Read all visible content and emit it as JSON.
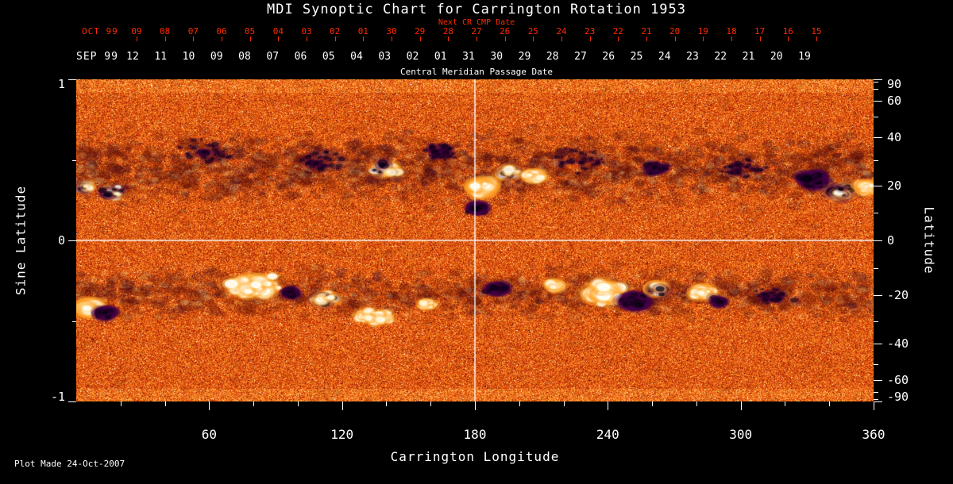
{
  "title": "MDI Synoptic Chart for Carrington Rotation 1953",
  "footer": {
    "plot_made": "Plot Made 24-Oct-2007"
  },
  "colors": {
    "background": "#000000",
    "date_red": "#ff2a00",
    "axis_white": "#ffffff",
    "quiet_sun_orange": "#d4420c",
    "positive_polarity_white": "#fffdf4",
    "negative_polarity_black": "#070210"
  },
  "axes": {
    "top": {
      "next_cr_label": "Next CR CMP Date",
      "next_cr_month": "OCT 99",
      "next_cr_days": [
        "09",
        "08",
        "07",
        "06",
        "05",
        "04",
        "03",
        "02",
        "01",
        "30",
        "29",
        "28",
        "27",
        "26",
        "25",
        "24",
        "23",
        "22",
        "21",
        "20",
        "19",
        "18",
        "17",
        "16",
        "15"
      ],
      "cmp_month": "SEP 99",
      "cmp_days": [
        "12",
        "11",
        "10",
        "09",
        "08",
        "07",
        "06",
        "05",
        "04",
        "03",
        "02",
        "01",
        "31",
        "30",
        "29",
        "28",
        "27",
        "26",
        "25",
        "24",
        "23",
        "22",
        "21",
        "20",
        "19"
      ],
      "cmp_label": "Central Meridian Passage Date"
    },
    "bottom": {
      "label": "Carrington Longitude",
      "ticks": [
        60,
        120,
        180,
        240,
        300,
        360
      ]
    },
    "left": {
      "label": "Sine Latitude",
      "ticks": [
        1,
        0,
        -1
      ]
    },
    "right": {
      "label": "Latitude",
      "ticks": [
        90,
        60,
        40,
        20,
        0,
        -20,
        -40,
        -60,
        -90
      ]
    }
  },
  "chart_data": {
    "type": "heatmap",
    "title": "MDI Synoptic Chart for Carrington Rotation 1953",
    "xlabel": "Carrington Longitude",
    "ylabel_left": "Sine Latitude",
    "ylabel_right": "Latitude",
    "x_range": [
      0,
      360
    ],
    "y_range_sine_latitude": [
      -1,
      1
    ],
    "latitude_ticks_right": [
      90,
      60,
      40,
      20,
      0,
      -20,
      -40,
      -60,
      -90
    ],
    "colormap": "red-temperature solar magnetogram: quiet sun = orange-red granular noise, positive flux = white, negative flux = black",
    "grid": {
      "vertical_lon_line": 180,
      "horizontal_sin_lat_line": 0
    },
    "active_regions": [
      {
        "lon": 17,
        "sin_lat": 0.3,
        "lon_extent_deg": 10,
        "polarity": "mixed",
        "pos_fraction": 0.35,
        "strength": 0.5
      },
      {
        "lon": 4,
        "sin_lat": 0.33,
        "lon_extent_deg": 6,
        "polarity": "mixed",
        "pos_fraction": 0.5,
        "strength": 0.35
      },
      {
        "lon": 140,
        "sin_lat": 0.44,
        "lon_extent_deg": 14,
        "polarity": "mixed",
        "pos_fraction": 0.7,
        "strength": 0.55
      },
      {
        "lon": 183,
        "sin_lat": 0.33,
        "lon_extent_deg": 10,
        "polarity": "positive",
        "strength": 0.9
      },
      {
        "lon": 181,
        "sin_lat": 0.2,
        "lon_extent_deg": 8,
        "polarity": "negative",
        "strength": 0.6
      },
      {
        "lon": 195,
        "sin_lat": 0.42,
        "lon_extent_deg": 9,
        "polarity": "mixed",
        "pos_fraction": 0.6,
        "strength": 0.6
      },
      {
        "lon": 207,
        "sin_lat": 0.4,
        "lon_extent_deg": 10,
        "polarity": "positive",
        "strength": 0.5
      },
      {
        "lon": 262,
        "sin_lat": 0.45,
        "lon_extent_deg": 12,
        "polarity": "negative",
        "strength": 0.35
      },
      {
        "lon": 333,
        "sin_lat": 0.38,
        "lon_extent_deg": 12,
        "polarity": "negative",
        "strength": 0.8
      },
      {
        "lon": 345,
        "sin_lat": 0.3,
        "lon_extent_deg": 10,
        "polarity": "mixed",
        "pos_fraction": 0.6,
        "strength": 0.85
      },
      {
        "lon": 357,
        "sin_lat": 0.33,
        "lon_extent_deg": 8,
        "polarity": "positive",
        "strength": 0.6
      },
      {
        "lon": 60,
        "sin_lat": 0.55,
        "lon_extent_deg": 30,
        "polarity": "negative",
        "strength": 0.22
      },
      {
        "lon": 110,
        "sin_lat": 0.5,
        "lon_extent_deg": 25,
        "polarity": "negative",
        "strength": 0.22
      },
      {
        "lon": 165,
        "sin_lat": 0.55,
        "lon_extent_deg": 20,
        "polarity": "negative",
        "strength": 0.28
      },
      {
        "lon": 230,
        "sin_lat": 0.5,
        "lon_extent_deg": 30,
        "polarity": "negative",
        "strength": 0.18
      },
      {
        "lon": 300,
        "sin_lat": 0.45,
        "lon_extent_deg": 25,
        "polarity": "negative",
        "strength": 0.22
      },
      {
        "lon": 6,
        "sin_lat": -0.42,
        "lon_extent_deg": 9,
        "polarity": "positive",
        "strength": 0.85
      },
      {
        "lon": 13,
        "sin_lat": -0.45,
        "lon_extent_deg": 7,
        "polarity": "negative",
        "strength": 0.6
      },
      {
        "lon": 80,
        "sin_lat": -0.28,
        "lon_extent_deg": 22,
        "polarity": "positive",
        "strength": 0.85
      },
      {
        "lon": 97,
        "sin_lat": -0.32,
        "lon_extent_deg": 6,
        "polarity": "negative",
        "strength": 0.4
      },
      {
        "lon": 112,
        "sin_lat": -0.36,
        "lon_extent_deg": 10,
        "polarity": "mixed",
        "pos_fraction": 0.65,
        "strength": 0.6
      },
      {
        "lon": 135,
        "sin_lat": -0.48,
        "lon_extent_deg": 18,
        "polarity": "positive",
        "strength": 0.45
      },
      {
        "lon": 158,
        "sin_lat": -0.4,
        "lon_extent_deg": 8,
        "polarity": "positive",
        "strength": 0.35
      },
      {
        "lon": 190,
        "sin_lat": -0.3,
        "lon_extent_deg": 10,
        "polarity": "negative",
        "strength": 0.55
      },
      {
        "lon": 216,
        "sin_lat": -0.28,
        "lon_extent_deg": 6,
        "polarity": "positive",
        "strength": 0.45
      },
      {
        "lon": 240,
        "sin_lat": -0.33,
        "lon_extent_deg": 18,
        "polarity": "positive",
        "strength": 1.0
      },
      {
        "lon": 252,
        "sin_lat": -0.38,
        "lon_extent_deg": 10,
        "polarity": "negative",
        "strength": 0.9
      },
      {
        "lon": 262,
        "sin_lat": -0.3,
        "lon_extent_deg": 8,
        "polarity": "mixed",
        "pos_fraction": 0.5,
        "strength": 0.6
      },
      {
        "lon": 283,
        "sin_lat": -0.32,
        "lon_extent_deg": 10,
        "polarity": "positive",
        "strength": 0.6
      },
      {
        "lon": 290,
        "sin_lat": -0.38,
        "lon_extent_deg": 6,
        "polarity": "negative",
        "strength": 0.35
      },
      {
        "lon": 315,
        "sin_lat": -0.35,
        "lon_extent_deg": 20,
        "polarity": "negative",
        "strength": 0.25
      }
    ]
  }
}
